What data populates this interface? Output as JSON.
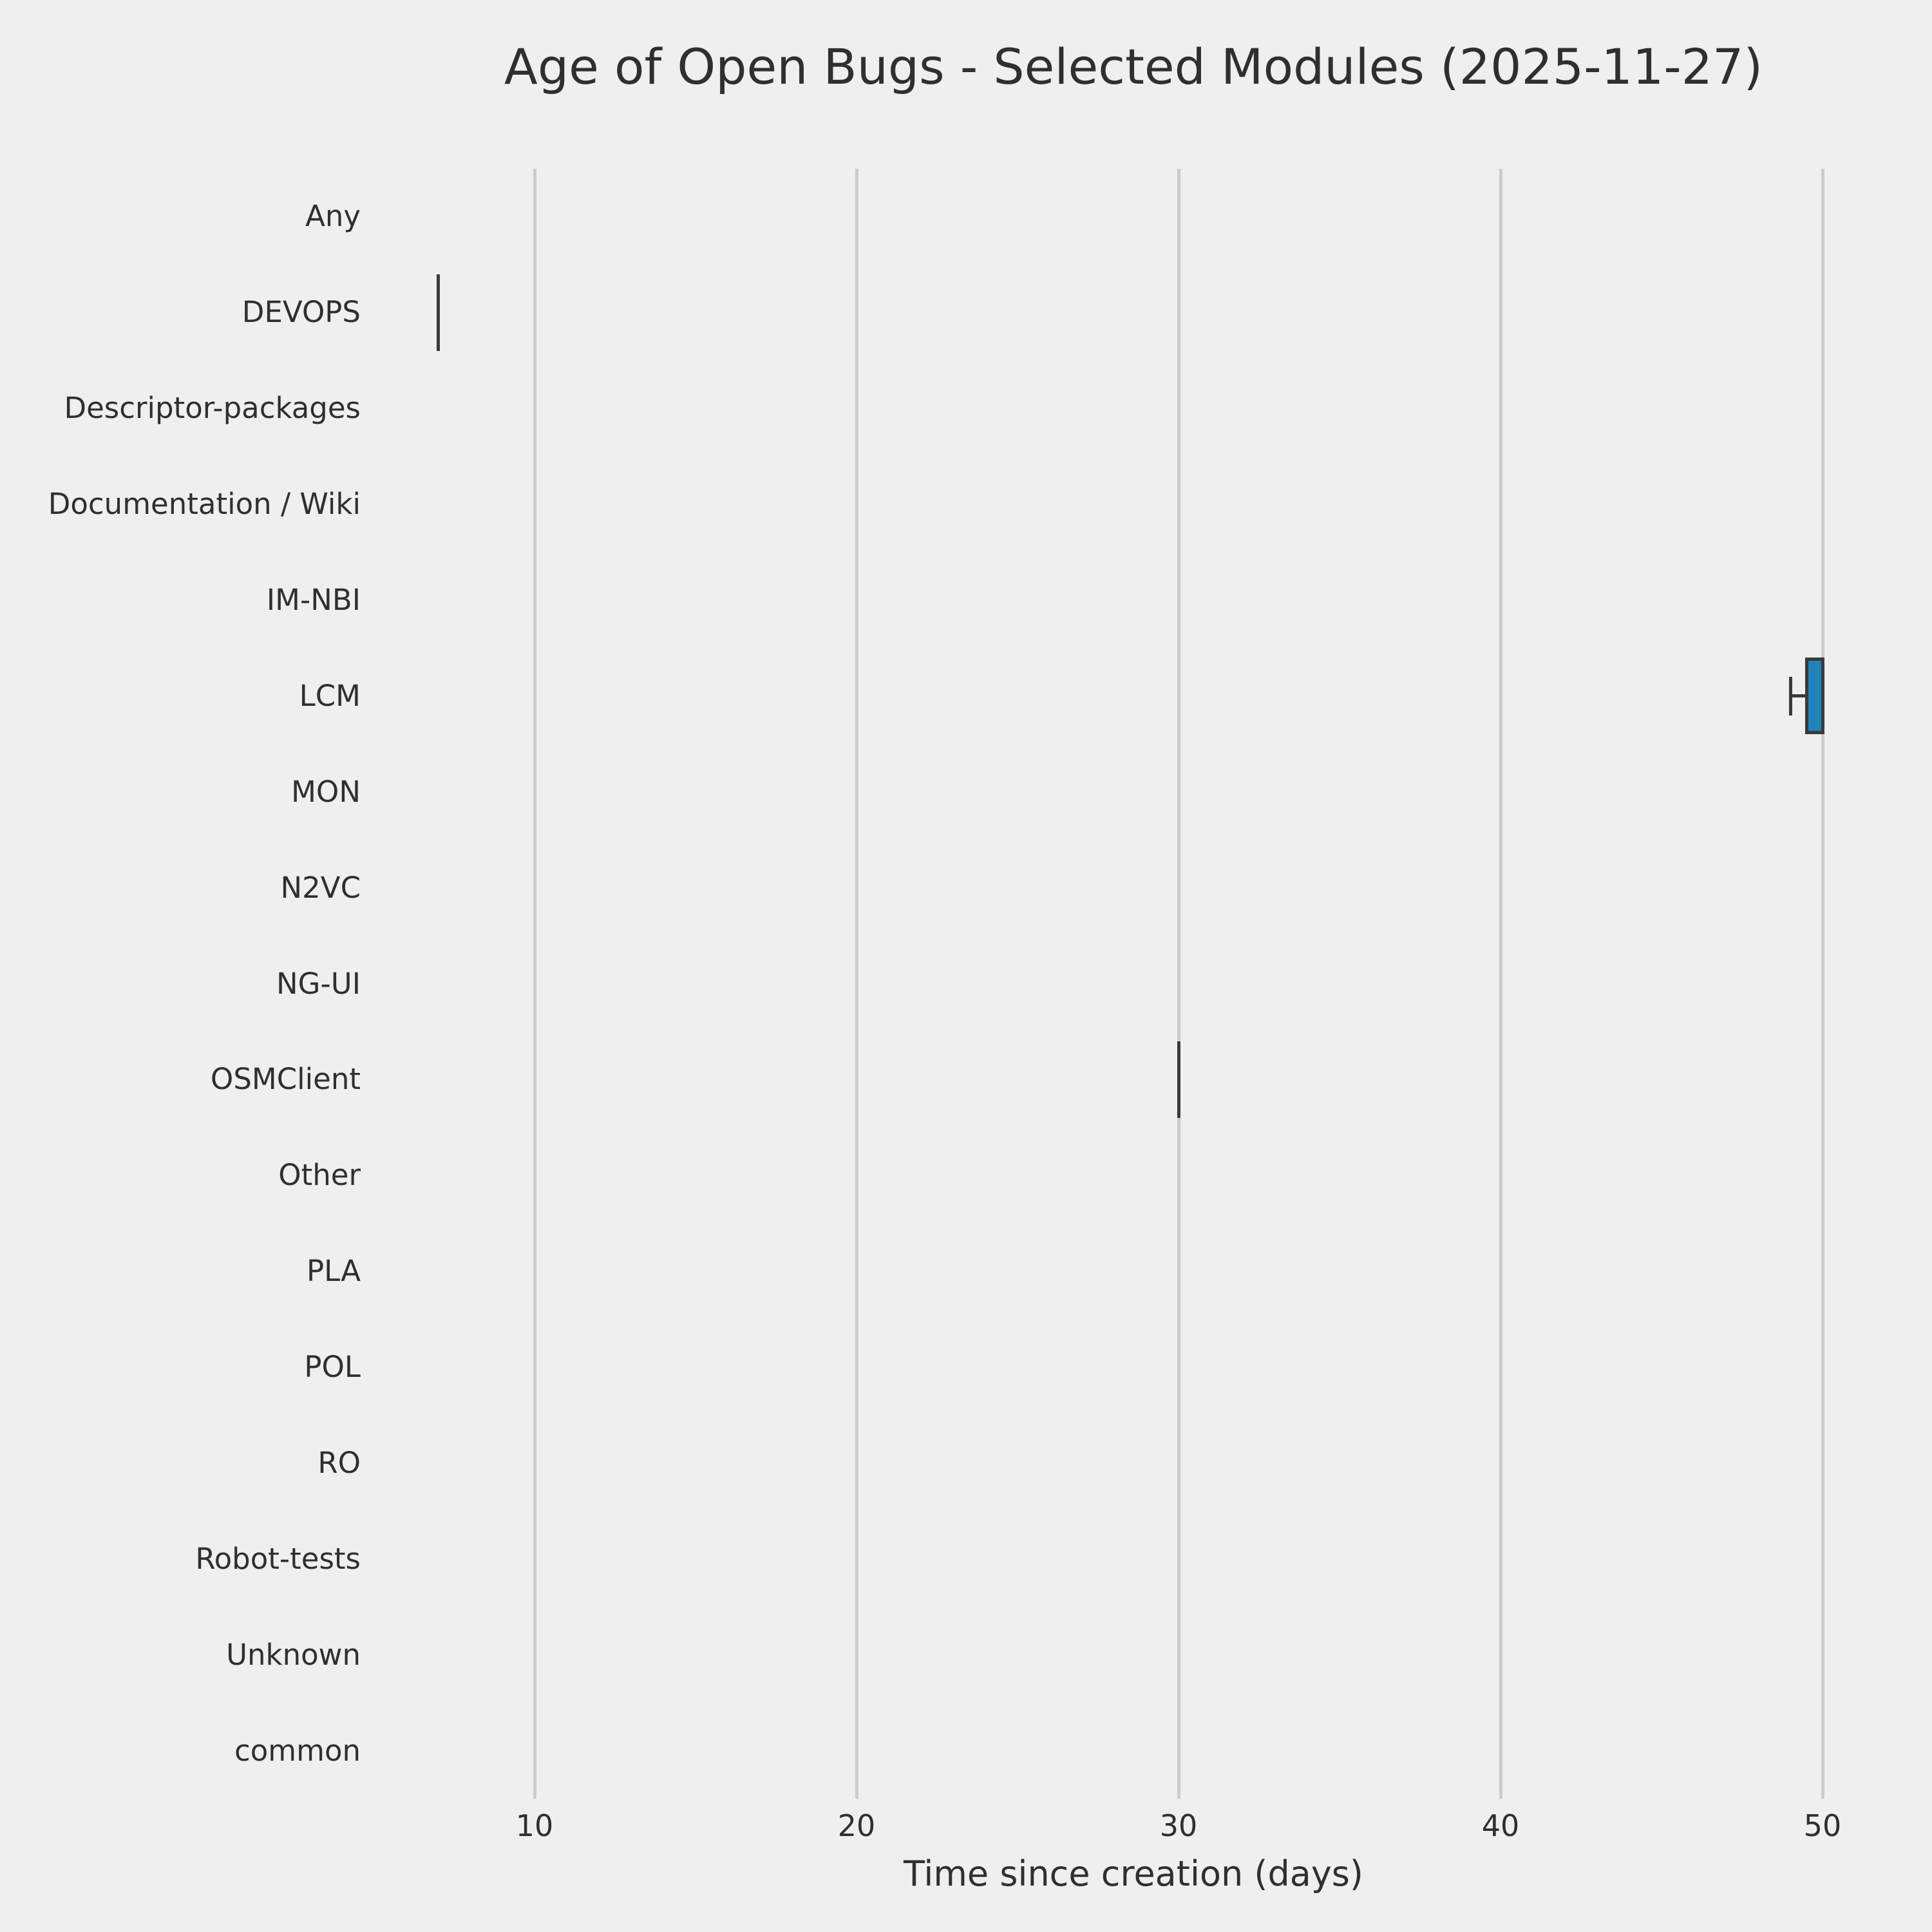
{
  "chart_data": {
    "type": "boxplot",
    "orientation": "horizontal",
    "title": "Age of Open Bugs - Selected Modules (2025-11-27)",
    "xlabel": "Time since creation (days)",
    "categories": [
      "Any",
      "DEVOPS",
      "Descriptor-packages",
      "Documentation / Wiki",
      "IM-NBI",
      "LCM",
      "MON",
      "N2VC",
      "NG-UI",
      "OSMClient",
      "Other",
      "PLA",
      "POL",
      "RO",
      "Robot-tests",
      "Unknown",
      "common"
    ],
    "x_ticks": [
      10,
      20,
      30,
      40,
      50
    ],
    "xlim": [
      5.8,
      51.4
    ],
    "grid": "vertical-only",
    "legend": "none",
    "boxes": [
      {
        "category": "DEVOPS",
        "min": 7,
        "q1": 7,
        "median": 7,
        "q3": 7,
        "max": 7
      },
      {
        "category": "LCM",
        "min": 49,
        "q1": 49.5,
        "median": 50,
        "q3": 50,
        "max": 50
      },
      {
        "category": "OSMClient",
        "min": 30,
        "q1": 30,
        "median": 30,
        "q3": 30,
        "max": 30
      }
    ],
    "colors": {
      "background": "#efefef",
      "gridline": "#cccccc",
      "box_fill": "#1f82b8",
      "box_edge": "#3a3a3a",
      "text": "#2f2f2f"
    }
  }
}
